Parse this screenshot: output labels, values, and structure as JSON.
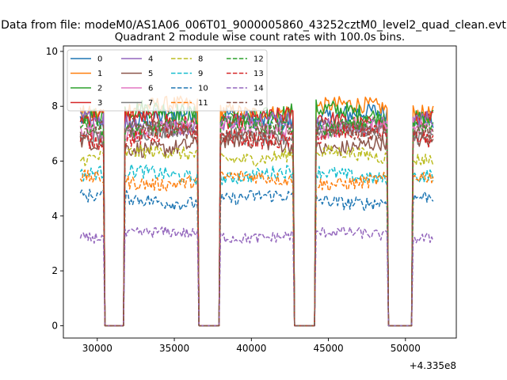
{
  "figure": {
    "suptitle": "Data from file: modeM0/AS1A06_006T01_9000005860_43252cztM0_level2_quad_clean.evt",
    "offset_label": "+4.335e8"
  },
  "chart_data": {
    "type": "line",
    "title": "Quadrant 2 module wise count rates with 100.0s bins.",
    "xlabel": "",
    "ylabel": "",
    "x_offset": 433500000,
    "xlim": [
      27800,
      53300
    ],
    "ylim": [
      -0.45,
      10.2
    ],
    "x_ticks": [
      30000,
      35000,
      40000,
      45000,
      50000
    ],
    "x_tick_labels": [
      "30000",
      "35000",
      "40000",
      "45000",
      "50000"
    ],
    "y_ticks": [
      0,
      2,
      4,
      6,
      8,
      10
    ],
    "y_tick_labels": [
      "0",
      "2",
      "4",
      "6",
      "8",
      "10"
    ],
    "bin_seconds": 100,
    "x_start": 28900,
    "x_end": 51800,
    "segments": [
      {
        "start": 28900,
        "end": 30400
      },
      {
        "start": 31800,
        "end": 36500
      },
      {
        "start": 38000,
        "end": 42700
      },
      {
        "start": 44200,
        "end": 48800
      },
      {
        "start": 50500,
        "end": 51800
      }
    ],
    "gap_value": 0,
    "legend": {
      "position": "upper left",
      "columns": 4
    },
    "series": [
      {
        "name": "0",
        "color": "#1f77b4",
        "style": "solid",
        "level": 7.6,
        "noise": 0.35
      },
      {
        "name": "1",
        "color": "#ff7f0e",
        "style": "solid",
        "level": 7.9,
        "noise": 0.3
      },
      {
        "name": "2",
        "color": "#2ca02c",
        "style": "solid",
        "level": 7.7,
        "noise": 0.35
      },
      {
        "name": "3",
        "color": "#d62728",
        "style": "solid",
        "level": 7.5,
        "noise": 0.3
      },
      {
        "name": "4",
        "color": "#9467bd",
        "style": "solid",
        "level": 7.4,
        "noise": 0.3
      },
      {
        "name": "5",
        "color": "#8c564b",
        "style": "solid",
        "level": 6.6,
        "noise": 0.3
      },
      {
        "name": "6",
        "color": "#e377c2",
        "style": "solid",
        "level": 7.2,
        "noise": 0.3
      },
      {
        "name": "7",
        "color": "#7f7f7f",
        "style": "solid",
        "level": 7.0,
        "noise": 0.3
      },
      {
        "name": "8",
        "color": "#bcbd22",
        "style": "dashed",
        "level": 6.2,
        "noise": 0.25
      },
      {
        "name": "9",
        "color": "#17becf",
        "style": "dashed",
        "level": 5.5,
        "noise": 0.25
      },
      {
        "name": "10",
        "color": "#1f77b4",
        "style": "dashed",
        "level": 4.6,
        "noise": 0.25
      },
      {
        "name": "11",
        "color": "#ff7f0e",
        "style": "dashed",
        "level": 5.3,
        "noise": 0.25
      },
      {
        "name": "12",
        "color": "#2ca02c",
        "style": "dashed",
        "level": 7.3,
        "noise": 0.3
      },
      {
        "name": "13",
        "color": "#d62728",
        "style": "dashed",
        "level": 6.9,
        "noise": 0.3
      },
      {
        "name": "14",
        "color": "#9467bd",
        "style": "dashed",
        "level": 3.3,
        "noise": 0.2
      },
      {
        "name": "15",
        "color": "#8c564b",
        "style": "dashed",
        "level": 7.1,
        "noise": 0.3
      }
    ]
  }
}
